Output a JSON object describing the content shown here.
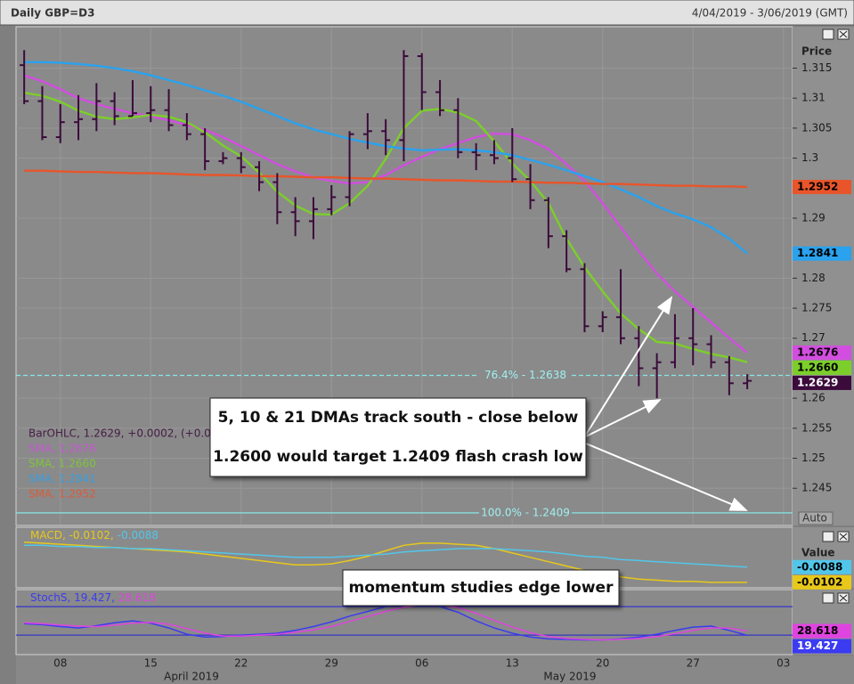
{
  "header": {
    "title": "Daily GBP=D3",
    "range": "4/04/2019 - 3/06/2019 (GMT)"
  },
  "chart_data": [
    {
      "type": "ohlc",
      "y_axis_title": "Price",
      "auto_label": "Auto",
      "categories": [
        null,
        null,
        "08",
        null,
        null,
        null,
        null,
        "15",
        null,
        null,
        null,
        null,
        "22",
        null,
        null,
        null,
        null,
        "29",
        null,
        null,
        null,
        null,
        "06",
        null,
        null,
        null,
        null,
        "13",
        null,
        null,
        null,
        null,
        "20",
        null,
        null,
        null,
        null,
        "27",
        null,
        null,
        null,
        null,
        "03"
      ],
      "month_labels": [
        "April 2019",
        "May 2019"
      ],
      "ylim": [
        1.2388,
        1.3219
      ],
      "yticks": [
        1.315,
        1.31,
        1.305,
        1.3,
        1.29,
        1.28,
        1.275,
        1.27,
        1.26,
        1.255,
        1.25,
        1.245
      ],
      "grid": true,
      "ohlc": {
        "name": "BarOHLC, 1.2629, +0.0002, (+0.0",
        "color": "#3b0b3b",
        "last_label": "1.2629",
        "open": [
          1.3155,
          1.3095,
          1.3035,
          1.306,
          1.3065,
          1.3095,
          1.307,
          1.3075,
          1.308,
          1.3055,
          1.304,
          1.2995,
          1.3,
          1.2985,
          1.296,
          1.291,
          1.2895,
          1.2915,
          1.2935,
          1.304,
          1.3045,
          1.303,
          1.317,
          1.311,
          1.308,
          1.301,
          1.3005,
          1.3,
          1.2965,
          1.293,
          1.287,
          1.2815,
          1.272,
          1.2735,
          1.27,
          1.265,
          1.266,
          1.27,
          1.269,
          1.266,
          1.2625,
          null,
          null
        ],
        "high": [
          1.318,
          1.312,
          1.309,
          1.3105,
          1.3125,
          1.311,
          1.313,
          1.312,
          1.3115,
          1.3075,
          1.305,
          1.301,
          1.301,
          1.2995,
          1.2975,
          1.2935,
          1.2935,
          1.2955,
          1.3045,
          1.3075,
          1.3065,
          1.318,
          1.3175,
          1.313,
          1.31,
          1.3025,
          1.303,
          1.305,
          1.299,
          1.2935,
          1.288,
          1.2825,
          1.2745,
          1.2815,
          1.272,
          1.2675,
          1.274,
          1.275,
          1.2705,
          1.267,
          1.264,
          null,
          null
        ],
        "low": [
          1.309,
          1.303,
          1.3025,
          1.303,
          1.3045,
          1.3055,
          1.307,
          1.306,
          1.3045,
          1.303,
          1.298,
          1.299,
          1.2975,
          1.2945,
          1.289,
          1.287,
          1.2865,
          1.2905,
          1.292,
          1.3015,
          1.3005,
          1.2995,
          1.308,
          1.307,
          1.3,
          1.298,
          1.299,
          1.296,
          1.2915,
          1.285,
          1.281,
          1.271,
          1.271,
          1.269,
          1.262,
          1.26,
          1.265,
          1.2655,
          1.265,
          1.2605,
          1.2615,
          null,
          null
        ],
        "close": [
          1.3095,
          1.3035,
          1.306,
          1.3065,
          1.3095,
          1.307,
          1.3075,
          1.308,
          1.3055,
          1.304,
          1.2995,
          1.3,
          1.2985,
          1.296,
          1.291,
          1.2895,
          1.2915,
          1.2935,
          1.304,
          1.3045,
          1.303,
          1.317,
          1.311,
          1.308,
          1.301,
          1.3005,
          1.3,
          1.2965,
          1.293,
          1.287,
          1.2815,
          1.272,
          1.2735,
          1.27,
          1.265,
          1.266,
          1.27,
          1.269,
          1.266,
          1.2625,
          1.2629,
          null,
          null
        ]
      },
      "series": [
        {
          "name": "SMA, 1.2676",
          "color": "#d24ee0",
          "last_label": "1.2676",
          "values": [
            1.3138,
            1.3128,
            1.3115,
            1.31,
            1.309,
            1.3082,
            1.3075,
            1.307,
            1.3063,
            1.3055,
            1.3047,
            1.3035,
            1.302,
            1.3005,
            1.299,
            1.2978,
            1.2968,
            1.2962,
            1.2958,
            1.296,
            1.2972,
            1.2988,
            1.3002,
            1.3015,
            1.3025,
            1.3035,
            1.3041,
            1.304,
            1.303,
            1.3015,
            1.299,
            1.2962,
            1.2925,
            1.2885,
            1.2845,
            1.2808,
            1.2778,
            1.2752,
            1.2726,
            1.27,
            1.2676,
            null,
            null
          ]
        },
        {
          "name": "SMA, 1.2660",
          "color": "#7ccf2a",
          "last_label": "1.2660",
          "values": [
            1.3109,
            1.3104,
            1.3094,
            1.3079,
            1.3069,
            1.3065,
            1.3068,
            1.3072,
            1.3069,
            1.306,
            1.3043,
            1.3021,
            1.3003,
            1.2976,
            1.2944,
            1.2921,
            1.2907,
            1.2906,
            1.2925,
            1.2954,
            1.2999,
            1.305,
            1.3079,
            1.3082,
            1.3076,
            1.3062,
            1.3028,
            1.2991,
            1.2962,
            1.2925,
            1.2866,
            1.2818,
            1.2778,
            1.2741,
            1.2715,
            1.2694,
            1.2691,
            1.2682,
            1.2674,
            1.2668,
            1.266,
            null,
            null
          ]
        },
        {
          "name": "SMA, 1.2841",
          "color": "#2aa2ee",
          "last_label": "1.2841",
          "values": [
            1.316,
            1.316,
            1.3159,
            1.3157,
            1.3154,
            1.315,
            1.3145,
            1.3138,
            1.313,
            1.3122,
            1.3113,
            1.3104,
            1.3094,
            1.3082,
            1.307,
            1.3058,
            1.3048,
            1.304,
            1.3032,
            1.3026,
            1.302,
            1.3016,
            1.3013,
            1.3014,
            1.3015,
            1.3013,
            1.301,
            1.3005,
            1.2997,
            1.2989,
            1.298,
            1.297,
            1.296,
            1.2948,
            1.2935,
            1.292,
            1.2908,
            1.2898,
            1.2885,
            1.2866,
            1.2841,
            null,
            null
          ]
        },
        {
          "name": "SMA, 1.2952",
          "color": "#e8552a",
          "last_label": "1.2952",
          "values": [
            1.2979,
            1.2979,
            1.2978,
            1.2977,
            1.2977,
            1.2976,
            1.2975,
            1.2975,
            1.2974,
            1.2973,
            1.2972,
            1.2972,
            1.2971,
            1.297,
            1.297,
            1.2969,
            1.2968,
            1.2968,
            1.2967,
            1.2966,
            1.2966,
            1.2965,
            1.2964,
            1.2963,
            1.2963,
            1.2962,
            1.2961,
            1.2961,
            1.296,
            1.2959,
            1.2959,
            1.2958,
            1.2957,
            1.2957,
            1.2956,
            1.2955,
            1.2954,
            1.2954,
            1.2953,
            1.2953,
            1.2952,
            null,
            null
          ]
        }
      ],
      "fib_levels": [
        {
          "value": 1.2638,
          "label": "76.4% - 1.2638",
          "style": "dashed"
        },
        {
          "value": 1.2409,
          "label": "100.0% - 1.2409",
          "style": "solid"
        }
      ],
      "annotations": [
        {
          "lines": [
            "5, 10 & 21 DMAs track south - close below",
            "1.2600 would target 1.2409 flash crash low"
          ]
        }
      ]
    },
    {
      "type": "line",
      "y_axis_title": "Value",
      "ylim": [
        -0.0107,
        -0.0053
      ],
      "series": [
        {
          "name": "MACD, -0.0102,",
          "color": "#e8c81a",
          "last_label": "-0.0102",
          "values": [
            -0.0065,
            -0.0066,
            -0.0067,
            -0.0068,
            -0.0069,
            -0.007,
            -0.0071,
            -0.0072,
            -0.0073,
            -0.0074,
            -0.0076,
            -0.0078,
            -0.008,
            -0.0082,
            -0.0084,
            -0.0086,
            -0.0086,
            -0.0085,
            -0.0082,
            -0.0078,
            -0.0073,
            -0.0068,
            -0.0066,
            -0.0066,
            -0.0067,
            -0.0068,
            -0.0071,
            -0.0075,
            -0.0079,
            -0.0083,
            -0.0087,
            -0.0091,
            -0.0094,
            -0.0097,
            -0.0099,
            -0.01,
            -0.0101,
            -0.0101,
            -0.0102,
            -0.0102,
            -0.0102,
            null,
            null
          ]
        },
        {
          "name": "-0.0088",
          "color": "#52c6ea",
          "last_label": "-0.0088",
          "values": [
            -0.0068,
            -0.0068,
            -0.0069,
            -0.0069,
            -0.007,
            -0.007,
            -0.0071,
            -0.0071,
            -0.0072,
            -0.0073,
            -0.0074,
            -0.0075,
            -0.0076,
            -0.0077,
            -0.0078,
            -0.0079,
            -0.0079,
            -0.0079,
            -0.0078,
            -0.0077,
            -0.0076,
            -0.0074,
            -0.0073,
            -0.0072,
            -0.0071,
            -0.0071,
            -0.0071,
            -0.0072,
            -0.0073,
            -0.0074,
            -0.0076,
            -0.0078,
            -0.0079,
            -0.0081,
            -0.0082,
            -0.0083,
            -0.0084,
            -0.0085,
            -0.0086,
            -0.0087,
            -0.0088,
            null,
            null
          ]
        }
      ]
    },
    {
      "type": "line",
      "ylim": [
        -21,
        114
      ],
      "levels": [
        20,
        80
      ],
      "level_color": "#3434c8",
      "series": [
        {
          "name": "StochS, 19.427,",
          "color": "#3b3bf2",
          "last_label": "19.427",
          "values": [
            44,
            42,
            38,
            35,
            40,
            46,
            50,
            45,
            35,
            22,
            16,
            17,
            20,
            22,
            24,
            30,
            38,
            48,
            60,
            70,
            80,
            86,
            86,
            80,
            68,
            50,
            35,
            24,
            16,
            12,
            11,
            10,
            10,
            12,
            16,
            22,
            30,
            37,
            39,
            30,
            19.427,
            null,
            null
          ]
        },
        {
          "name": "28.618",
          "color": "#e044e0",
          "last_label": "28.618",
          "values": [
            46,
            44,
            41,
            39,
            38,
            41,
            45,
            47,
            43,
            34,
            24,
            18,
            18,
            20,
            22,
            26,
            31,
            38,
            49,
            59,
            70,
            79,
            84,
            84,
            78,
            66,
            51,
            37,
            25,
            17,
            13,
            11,
            10,
            11,
            13,
            17,
            23,
            30,
            35,
            35,
            28.618,
            null,
            null
          ]
        }
      ],
      "annotations": [
        {
          "lines": [
            "momentum studies edge lower"
          ]
        }
      ]
    }
  ]
}
